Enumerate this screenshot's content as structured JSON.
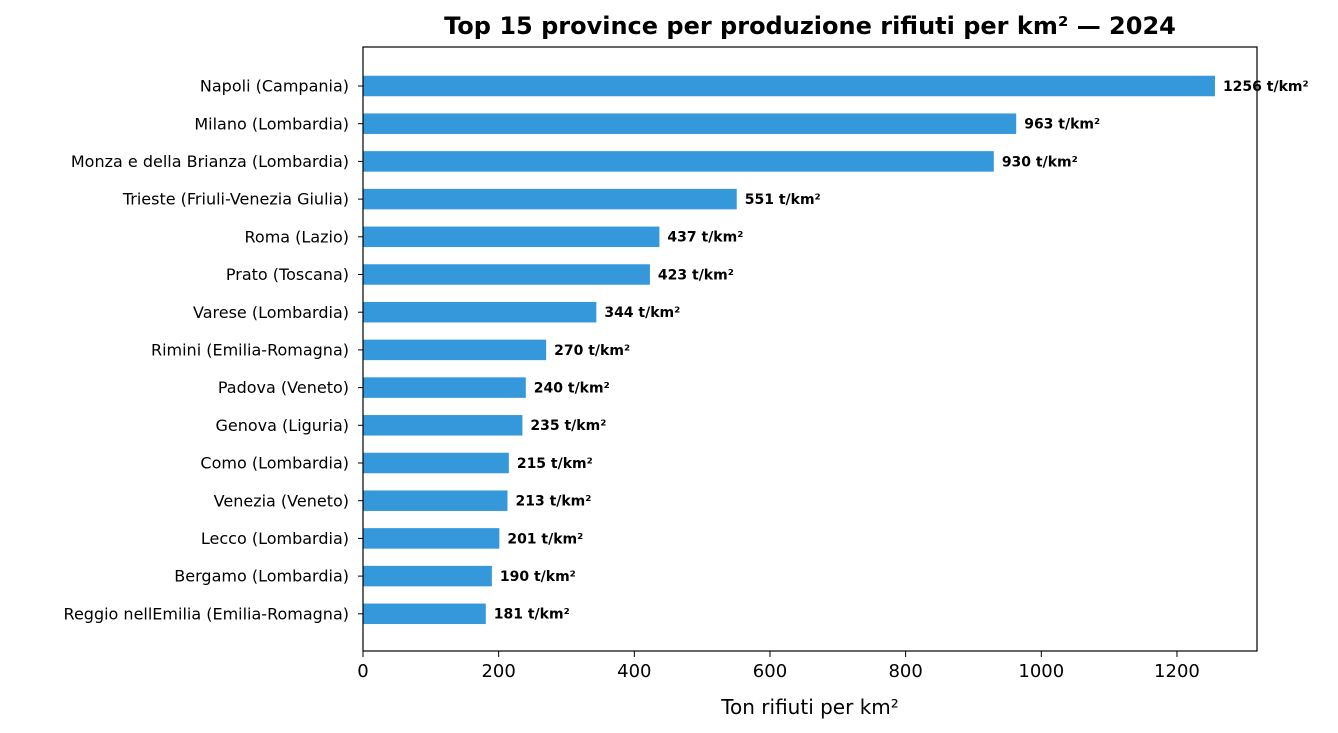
{
  "chart_data": {
    "type": "bar",
    "orientation": "horizontal",
    "title": "Top 15 province per produzione rifiuti per km² — 2024",
    "xlabel": "Ton rifiuti per km²",
    "ylabel": "",
    "xlim": [
      0,
      1318
    ],
    "xticks": [
      0,
      200,
      400,
      600,
      800,
      1000,
      1200
    ],
    "bar_color": "#3498db",
    "grid": false,
    "unit_suffix": " t/km²",
    "categories": [
      "Napoli (Campania)",
      "Milano (Lombardia)",
      "Monza e della Brianza (Lombardia)",
      "Trieste (Friuli-Venezia Giulia)",
      "Roma (Lazio)",
      "Prato (Toscana)",
      "Varese (Lombardia)",
      "Rimini (Emilia-Romagna)",
      "Padova (Veneto)",
      "Genova (Liguria)",
      "Como (Lombardia)",
      "Venezia (Veneto)",
      "Lecco (Lombardia)",
      "Bergamo (Lombardia)",
      "Reggio nellEmilia (Emilia-Romagna)"
    ],
    "values": [
      1256,
      963,
      930,
      551,
      437,
      423,
      344,
      270,
      240,
      235,
      215,
      213,
      201,
      190,
      181
    ],
    "data_labels": [
      "1256 t/km²",
      "963 t/km²",
      "930 t/km²",
      "551 t/km²",
      "437 t/km²",
      "423 t/km²",
      "344 t/km²",
      "270 t/km²",
      "240 t/km²",
      "235 t/km²",
      "215 t/km²",
      "213 t/km²",
      "201 t/km²",
      "190 t/km²",
      "181 t/km²"
    ]
  }
}
